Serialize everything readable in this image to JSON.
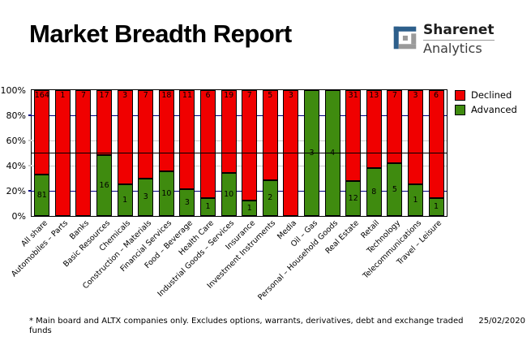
{
  "header": {
    "title": "Market Breadth Report",
    "logo": {
      "line1": "Sharenet",
      "line2": "Analytics",
      "icon_blue": "#2d5f8b",
      "icon_gray": "#9a9a9a"
    }
  },
  "chart_data": {
    "type": "bar",
    "stacking": "percent",
    "title": "Market Breadth Report",
    "categories": [
      "All share",
      "Automobiles – Parts",
      "Banks",
      "Basic Resources",
      "Chemicals",
      "Construction – Materials",
      "Financial Services",
      "Food – Beverage",
      "Health Care",
      "Industrial Goods – Services",
      "Insurance",
      "Investment Instruments",
      "Media",
      "Oil – Gas",
      "Personal – Household Goods",
      "Real Estate",
      "Retail",
      "Technology",
      "Telecommunications",
      "Travel – Leisure"
    ],
    "series": [
      {
        "name": "Declined",
        "color": "#f00000",
        "values": [
          164,
          1,
          7,
          17,
          3,
          7,
          18,
          11,
          6,
          19,
          7,
          5,
          3,
          0,
          0,
          31,
          13,
          7,
          3,
          6
        ]
      },
      {
        "name": "Advanced",
        "color": "#3f8b0f",
        "values": [
          81,
          0,
          0,
          16,
          1,
          3,
          10,
          3,
          1,
          10,
          1,
          2,
          0,
          3,
          4,
          12,
          8,
          5,
          1,
          1
        ]
      }
    ],
    "ylim": [
      0,
      100
    ],
    "yticks": [
      {
        "pct": 0,
        "label": "0%"
      },
      {
        "pct": 20,
        "label": "20%",
        "grid_color": "#000080"
      },
      {
        "pct": 40,
        "label": "40%",
        "grid_color": "#c9c9c9"
      },
      {
        "pct": 60,
        "label": "60%",
        "grid_color": "#c9c9c9"
      },
      {
        "pct": 80,
        "label": "80%",
        "grid_color": "#000080"
      },
      {
        "pct": 100,
        "label": "100%"
      }
    ],
    "reference_line_pct": 50,
    "legend_position": "top-right",
    "grid": true
  },
  "footer": {
    "note": "* Main board and ALTX companies only. Excludes options, warrants, derivatives, debt and exchange traded funds",
    "date": "25/02/2020"
  }
}
